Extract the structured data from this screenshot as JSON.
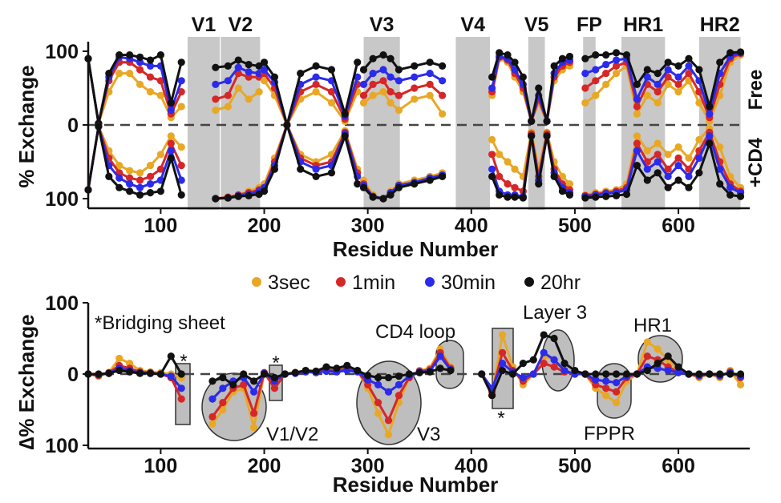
{
  "colors": {
    "3sec": "#E8A825",
    "1min": "#D62728",
    "30min": "#2B2BEB",
    "20hr": "#111111",
    "region": "#C8C8C8",
    "highlight": "#BEBEBE"
  },
  "chart_data": [
    {
      "type": "line",
      "title": "",
      "xlabel": "Residue Number",
      "ylabel": "% Exchange",
      "xlim": [
        30,
        665
      ],
      "ylim": [
        -100,
        100
      ],
      "x_ticks": [
        100,
        200,
        300,
        400,
        500,
        600
      ],
      "y_tick_labels": [
        "100",
        "0",
        "100"
      ],
      "side_labels": {
        "upper": "Free",
        "lower": "+CD4"
      },
      "regions": [
        {
          "label": "V1",
          "start": 126,
          "end": 157
        },
        {
          "label": "V2",
          "start": 158,
          "end": 196
        },
        {
          "label": "V3",
          "start": 296,
          "end": 331
        },
        {
          "label": "V4",
          "start": 385,
          "end": 418
        },
        {
          "label": "V5",
          "start": 455,
          "end": 471
        },
        {
          "label": "FP",
          "start": 508,
          "end": 520
        },
        {
          "label": "HR1",
          "start": 545,
          "end": 587
        },
        {
          "label": "HR2",
          "start": 620,
          "end": 660
        }
      ],
      "segments": [
        {
          "x": [
            30,
            40,
            50,
            60,
            70,
            80,
            90,
            100,
            110,
            120
          ],
          "free": {
            "3sec": [
              90,
              2,
              45,
              70,
              70,
              55,
              45,
              40,
              10,
              25
            ],
            "1min": [
              90,
              2,
              60,
              85,
              85,
              75,
              65,
              60,
              15,
              45
            ],
            "30min": [
              90,
              2,
              65,
              92,
              90,
              85,
              80,
              80,
              20,
              60
            ],
            "20hr": [
              90,
              2,
              70,
              95,
              95,
              92,
              88,
              95,
              30,
              85
            ]
          },
          "cd4": {
            "3sec": [
              -88,
              -2,
              -35,
              -55,
              -62,
              -65,
              -55,
              -40,
              -15,
              -30
            ],
            "1min": [
              -88,
              -2,
              -45,
              -65,
              -72,
              -75,
              -70,
              -60,
              -25,
              -55
            ],
            "30min": [
              -88,
              -2,
              -55,
              -72,
              -80,
              -85,
              -80,
              -75,
              -35,
              -75
            ],
            "20hr": [
              -88,
              -2,
              -70,
              -85,
              -90,
              -95,
              -92,
              -90,
              -45,
              -95
            ]
          }
        },
        {
          "x": [
            153,
            165,
            175,
            185,
            195
          ],
          "free": {
            "3sec": [
              20,
              25,
              50,
              35,
              45
            ],
            "1min": [
              35,
              40,
              70,
              65,
              65
            ],
            "30min": [
              55,
              60,
              78,
              72,
              70
            ],
            "20hr": [
              78,
              80,
              88,
              82,
              80
            ]
          },
          "cd4": {
            "3sec": [
              -100,
              -98,
              -95,
              -90,
              -85
            ],
            "1min": [
              -100,
              -98,
              -95,
              -92,
              -88
            ],
            "30min": [
              -100,
              -99,
              -96,
              -94,
              -90
            ],
            "20hr": [
              -100,
              -99,
              -97,
              -96,
              -94
            ]
          }
        },
        {
          "x": [
            200,
            210,
            222,
            235,
            250,
            265,
            278,
            290
          ],
          "free": {
            "3sec": [
              60,
              40,
              0,
              35,
              45,
              30,
              5,
              45
            ],
            "1min": [
              70,
              50,
              0,
              45,
              55,
              45,
              8,
              55
            ],
            "30min": [
              75,
              58,
              0,
              55,
              65,
              60,
              12,
              65
            ],
            "20hr": [
              85,
              65,
              0,
              70,
              80,
              75,
              15,
              85
            ]
          },
          "cd4": {
            "3sec": [
              -80,
              -45,
              0,
              -40,
              -50,
              -40,
              -8,
              -60
            ],
            "1min": [
              -85,
              -50,
              0,
              -45,
              -55,
              -50,
              -10,
              -65
            ],
            "30min": [
              -85,
              -55,
              0,
              -50,
              -60,
              -55,
              -12,
              -70
            ],
            "20hr": [
              -90,
              -60,
              0,
              -60,
              -70,
              -65,
              -15,
              -80
            ]
          }
        },
        {
          "x": [
            296,
            305,
            315,
            322,
            330,
            345,
            360,
            372
          ],
          "free": {
            "3sec": [
              30,
              40,
              45,
              30,
              20,
              35,
              40,
              15
            ],
            "1min": [
              40,
              55,
              60,
              45,
              40,
              50,
              55,
              40
            ],
            "30min": [
              55,
              70,
              75,
              65,
              60,
              65,
              70,
              60
            ],
            "20hr": [
              75,
              90,
              95,
              90,
              75,
              80,
              85,
              80
            ]
          },
          "cd4": {
            "3sec": [
              -75,
              -95,
              -100,
              -90,
              -80,
              -75,
              -70,
              -65
            ],
            "1min": [
              -80,
              -97,
              -100,
              -92,
              -82,
              -78,
              -72,
              -68
            ],
            "30min": [
              -82,
              -97,
              -100,
              -92,
              -82,
              -78,
              -72,
              -68
            ],
            "20hr": [
              -85,
              -98,
              -100,
              -95,
              -85,
              -80,
              -75,
              -70
            ]
          }
        },
        {
          "x": [
            420,
            427,
            435,
            442,
            450,
            458,
            465,
            473,
            480,
            488,
            495
          ],
          "free": {
            "3sec": [
              40,
              90,
              85,
              65,
              45,
              5,
              30,
              5,
              60,
              75,
              80
            ],
            "1min": [
              45,
              92,
              88,
              70,
              50,
              5,
              35,
              5,
              65,
              80,
              85
            ],
            "30min": [
              50,
              93,
              90,
              75,
              55,
              5,
              40,
              5,
              70,
              85,
              88
            ],
            "20hr": [
              65,
              98,
              95,
              85,
              65,
              5,
              50,
              5,
              80,
              90,
              93
            ]
          },
          "cd4": {
            "3sec": [
              -20,
              -40,
              -50,
              -60,
              -70,
              -10,
              -60,
              -10,
              -50,
              -70,
              -80
            ],
            "1min": [
              -40,
              -70,
              -80,
              -85,
              -90,
              -12,
              -70,
              -12,
              -60,
              -80,
              -88
            ],
            "30min": [
              -60,
              -90,
              -95,
              -95,
              -97,
              -15,
              -75,
              -15,
              -65,
              -85,
              -92
            ],
            "20hr": [
              -70,
              -95,
              -98,
              -98,
              -99,
              -15,
              -80,
              -15,
              -70,
              -90,
              -95
            ]
          }
        },
        {
          "x": [
            510,
            520,
            530,
            540,
            550,
            560,
            570,
            580,
            590,
            600,
            610,
            620,
            630,
            640,
            650,
            660
          ],
          "free": {
            "3sec": [
              30,
              40,
              55,
              70,
              80,
              15,
              40,
              30,
              55,
              45,
              60,
              30,
              5,
              40,
              85,
              95
            ],
            "1min": [
              50,
              60,
              70,
              80,
              85,
              25,
              55,
              45,
              65,
              55,
              70,
              45,
              10,
              55,
              90,
              97
            ],
            "30min": [
              70,
              75,
              82,
              88,
              90,
              35,
              65,
              55,
              75,
              65,
              80,
              60,
              15,
              70,
              93,
              98
            ],
            "20hr": [
              90,
              95,
              95,
              98,
              95,
              55,
              75,
              70,
              85,
              80,
              90,
              75,
              25,
              85,
              98,
              99
            ]
          },
          "cd4": {
            "3sec": [
              -95,
              -92,
              -90,
              -88,
              -80,
              -15,
              -35,
              -25,
              -40,
              -30,
              -45,
              -20,
              -5,
              -30,
              -70,
              -85
            ],
            "1min": [
              -96,
              -94,
              -92,
              -90,
              -85,
              -25,
              -50,
              -40,
              -60,
              -45,
              -60,
              -35,
              -10,
              -50,
              -80,
              -90
            ],
            "30min": [
              -97,
              -95,
              -93,
              -92,
              -88,
              -35,
              -60,
              -50,
              -70,
              -55,
              -70,
              -45,
              -15,
              -60,
              -85,
              -92
            ],
            "20hr": [
              -99,
              -98,
              -97,
              -96,
              -94,
              -55,
              -75,
              -65,
              -85,
              -75,
              -85,
              -65,
              -25,
              -80,
              -95,
              -97
            ]
          }
        }
      ]
    },
    {
      "type": "line",
      "title": "",
      "xlabel": "Residue Number",
      "ylabel": "∆% Exchange",
      "xlim": [
        30,
        665
      ],
      "ylim": [
        -100,
        100
      ],
      "x_ticks": [
        100,
        200,
        300,
        400,
        500,
        600
      ],
      "y_tick_labels": [
        "100",
        "0",
        "100"
      ],
      "legend": {
        "placement": "between panels",
        "entries": [
          "3sec",
          "1min",
          "30min",
          "20hr"
        ]
      },
      "series_x": [
        30,
        40,
        50,
        60,
        70,
        80,
        90,
        100,
        110,
        120,
        150,
        160,
        170,
        180,
        190,
        200,
        210,
        220,
        230,
        240,
        250,
        260,
        270,
        280,
        290,
        300,
        310,
        320,
        330,
        340,
        350,
        360,
        370,
        380,
        410,
        420,
        430,
        440,
        450,
        460,
        470,
        480,
        490,
        500,
        510,
        520,
        530,
        540,
        550,
        560,
        570,
        580,
        590,
        600,
        610,
        620,
        630,
        640,
        650,
        660
      ],
      "series": [
        {
          "name": "3sec",
          "values": [
            0,
            -3,
            2,
            22,
            15,
            5,
            3,
            2,
            0,
            -5,
            -70,
            -50,
            -25,
            -20,
            -75,
            2,
            -15,
            0,
            2,
            5,
            3,
            8,
            5,
            10,
            5,
            -20,
            -55,
            -85,
            -40,
            -5,
            5,
            8,
            35,
            10,
            0,
            -30,
            55,
            10,
            -15,
            0,
            25,
            20,
            5,
            0,
            0,
            -20,
            -30,
            -40,
            -10,
            0,
            45,
            35,
            20,
            5,
            0,
            -5,
            0,
            -5,
            5,
            -15
          ]
        },
        {
          "name": "1min",
          "values": [
            0,
            -2,
            2,
            12,
            8,
            3,
            2,
            0,
            -5,
            -35,
            -60,
            -40,
            -20,
            -15,
            -55,
            2,
            -20,
            0,
            2,
            4,
            3,
            6,
            4,
            8,
            4,
            -15,
            -40,
            -65,
            -30,
            -5,
            4,
            6,
            30,
            8,
            0,
            -25,
            30,
            5,
            -10,
            0,
            15,
            10,
            3,
            0,
            0,
            -15,
            -20,
            -25,
            -5,
            0,
            25,
            20,
            10,
            3,
            0,
            -3,
            0,
            -3,
            3,
            -5
          ]
        },
        {
          "name": "30min",
          "values": [
            0,
            -1,
            1,
            8,
            5,
            2,
            1,
            0,
            -3,
            -20,
            -35,
            -20,
            -10,
            -5,
            -25,
            1,
            -10,
            0,
            1,
            3,
            2,
            4,
            3,
            5,
            3,
            -8,
            -15,
            -25,
            -15,
            -3,
            3,
            4,
            25,
            6,
            0,
            -20,
            15,
            3,
            -5,
            0,
            30,
            20,
            5,
            0,
            0,
            -8,
            -10,
            -12,
            -3,
            0,
            10,
            8,
            5,
            2,
            0,
            -2,
            0,
            -2,
            2,
            -3
          ]
        },
        {
          "name": "20hr",
          "values": [
            0,
            0,
            1,
            5,
            3,
            1,
            1,
            0,
            25,
            0,
            -10,
            -5,
            -15,
            0,
            -10,
            0,
            -5,
            0,
            2,
            5,
            4,
            10,
            8,
            12,
            5,
            -2,
            -5,
            -5,
            -3,
            0,
            2,
            3,
            8,
            5,
            0,
            -30,
            5,
            0,
            15,
            20,
            55,
            50,
            15,
            5,
            0,
            0,
            0,
            0,
            0,
            0,
            5,
            15,
            25,
            10,
            0,
            0,
            0,
            0,
            0,
            0
          ]
        }
      ],
      "annotations": [
        {
          "label": "*Bridging sheet"
        },
        {
          "label": "*",
          "at": 117
        },
        {
          "label": "*",
          "at": 210
        },
        {
          "label": "*",
          "at": 427
        },
        {
          "label": "V1/V2"
        },
        {
          "label": "V3"
        },
        {
          "label": "CD4 loop"
        },
        {
          "label": "Layer 3"
        },
        {
          "label": "FPPR"
        },
        {
          "label": "HR1"
        }
      ]
    }
  ]
}
